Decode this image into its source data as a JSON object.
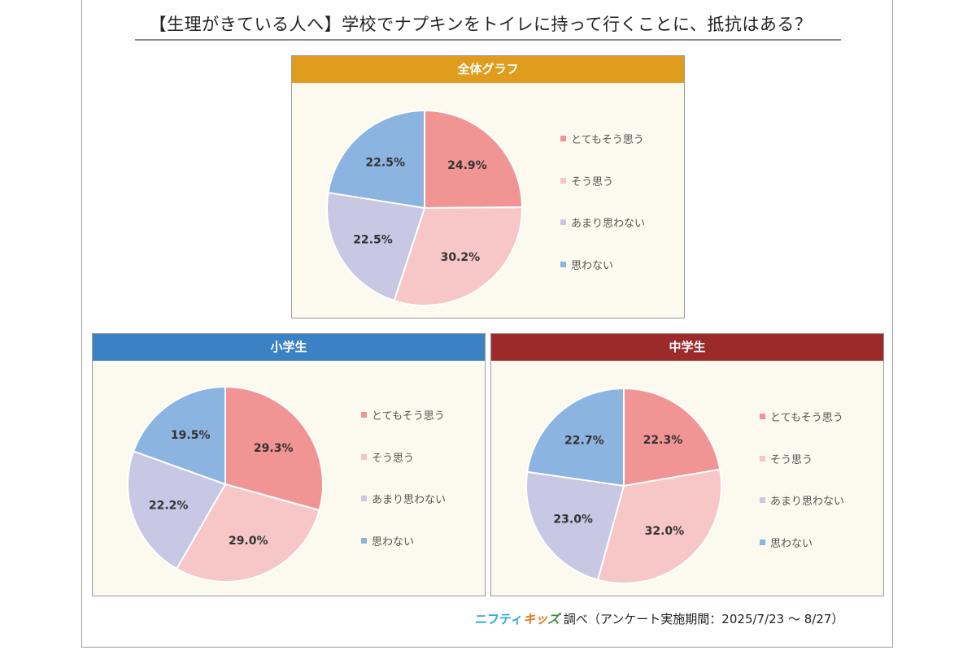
{
  "title": "【生理がきている人へ】学校でナプキンをトイレに持って行くことに、抵抗はある？",
  "legend_labels": [
    "とてもそう思う",
    "そう思う",
    "あまり思わない",
    "思わない"
  ],
  "colors": {
    "slices": [
      "#f09494",
      "#f7c6c7",
      "#c8c7e4",
      "#8bb4e0"
    ],
    "overall_header": "#e09c1c",
    "elementary_header": "#3a82c4",
    "junior_high_header": "#9c2a2a",
    "panel_bg": "#fcfaee"
  },
  "footer": {
    "brand_part1": "ニフティ",
    "brand_part2": "キッ",
    "brand_part3": "ズ",
    "text": " 調べ（アンケート実施期間：2025/7/23 ～ 8/27）"
  },
  "chart_data": [
    {
      "type": "pie",
      "title": "全体グラフ",
      "categories": [
        "とてもそう思う",
        "そう思う",
        "あまり思わない",
        "思わない"
      ],
      "values": [
        24.9,
        30.2,
        22.5,
        22.5
      ],
      "labels": [
        "24.9%",
        "30.2%",
        "22.5%",
        "22.5%"
      ],
      "legend_position": "right",
      "start_angle": "12 o'clock, clockwise"
    },
    {
      "type": "pie",
      "title": "小学生",
      "categories": [
        "とてもそう思う",
        "そう思う",
        "あまり思わない",
        "思わない"
      ],
      "values": [
        29.3,
        29.0,
        22.2,
        19.5
      ],
      "labels": [
        "29.3%",
        "29.0%",
        "22.2%",
        "19.5%"
      ],
      "legend_position": "right",
      "start_angle": "12 o'clock, clockwise"
    },
    {
      "type": "pie",
      "title": "中学生",
      "categories": [
        "とてもそう思う",
        "そう思う",
        "あまり思わない",
        "思わない"
      ],
      "values": [
        22.3,
        32.0,
        23.0,
        22.7
      ],
      "labels": [
        "22.3%",
        "32.0%",
        "23.0%",
        "22.7%"
      ],
      "legend_position": "right",
      "start_angle": "12 o'clock, clockwise"
    }
  ]
}
